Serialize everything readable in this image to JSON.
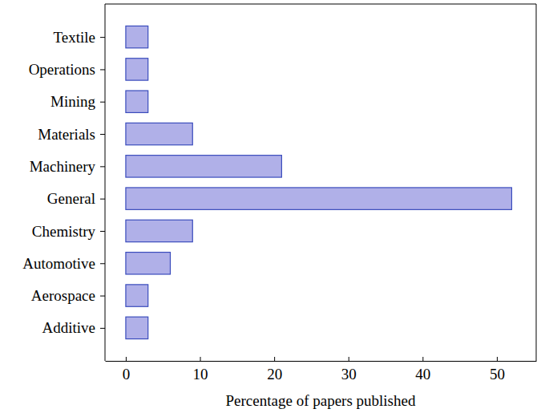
{
  "chart_data": {
    "type": "bar",
    "orientation": "horizontal",
    "categories": [
      "Additive",
      "Aerospace",
      "Automotive",
      "Chemistry",
      "General",
      "Machinery",
      "Materials",
      "Mining",
      "Operations",
      "Textile"
    ],
    "values": [
      3,
      3,
      6,
      9,
      52,
      21,
      9,
      3,
      3,
      3
    ],
    "color": "#b0b0e8",
    "x_label": "Percentage of papers published",
    "xlim": [
      -2.8,
      55.3
    ],
    "xticks": [
      0,
      10,
      20,
      30,
      40,
      50
    ],
    "grid": false
  }
}
